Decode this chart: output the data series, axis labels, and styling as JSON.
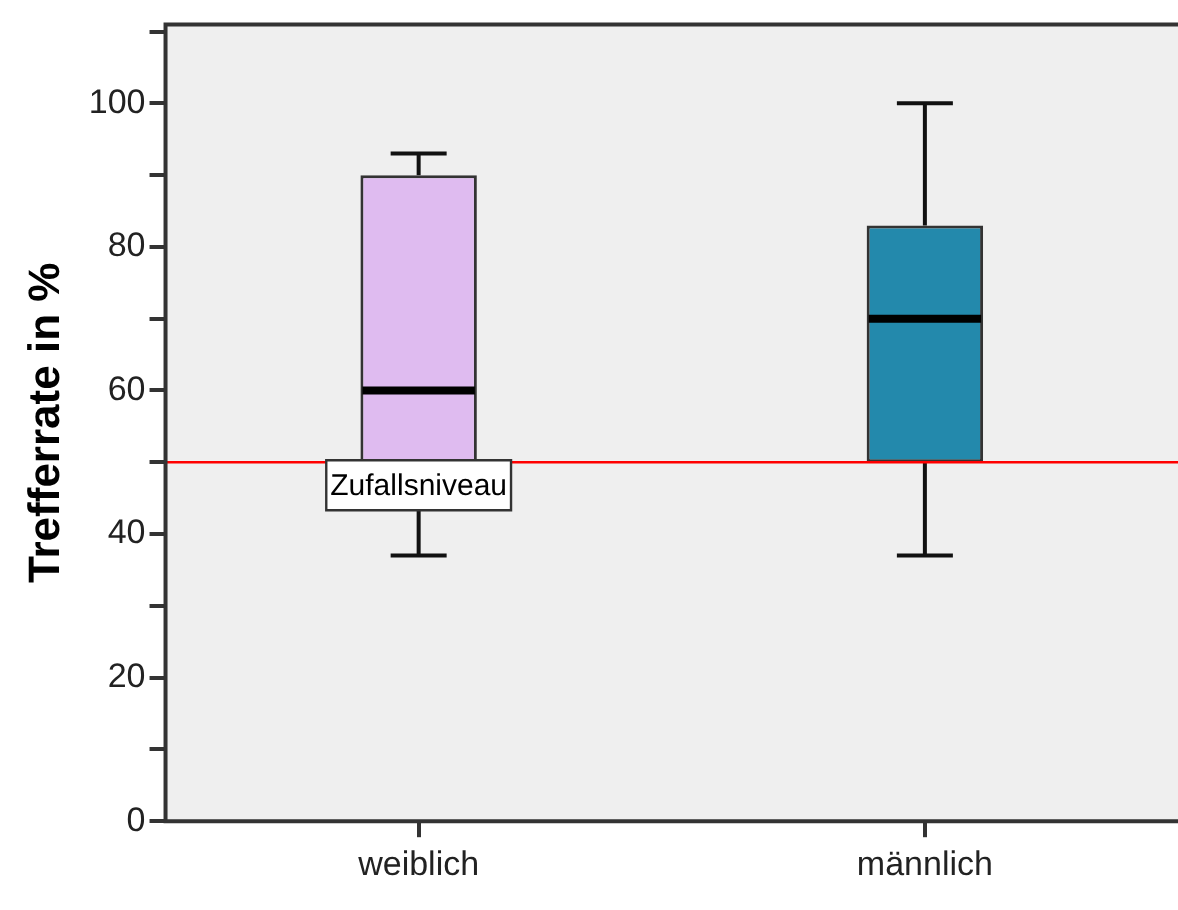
{
  "chart_data": {
    "type": "box",
    "ylabel": "Trefferrate in %",
    "categories": [
      "weiblich",
      "männlich"
    ],
    "boxes": [
      {
        "low": 37,
        "q1": 50,
        "median": 60,
        "q3": 90,
        "high": 93
      },
      {
        "low": 37,
        "q1": 50,
        "median": 70,
        "q3": 83,
        "high": 100
      }
    ],
    "colors": [
      "#dfbbf0",
      "#2389ac"
    ],
    "ylim": [
      0,
      111
    ],
    "yticks": [
      0,
      {
        "value": 10,
        "label": null
      },
      20,
      {
        "value": 30,
        "label": null
      },
      40,
      {
        "value": 50,
        "label": null
      },
      60,
      {
        "value": 70,
        "label": null
      },
      80,
      {
        "value": 90,
        "label": null
      },
      100,
      {
        "value": 110,
        "label": null
      }
    ],
    "ref_lines": [
      {
        "axis": "y",
        "value": 50,
        "label": "Zufallsniveau",
        "color": "#ff0000"
      }
    ],
    "legend": false
  }
}
